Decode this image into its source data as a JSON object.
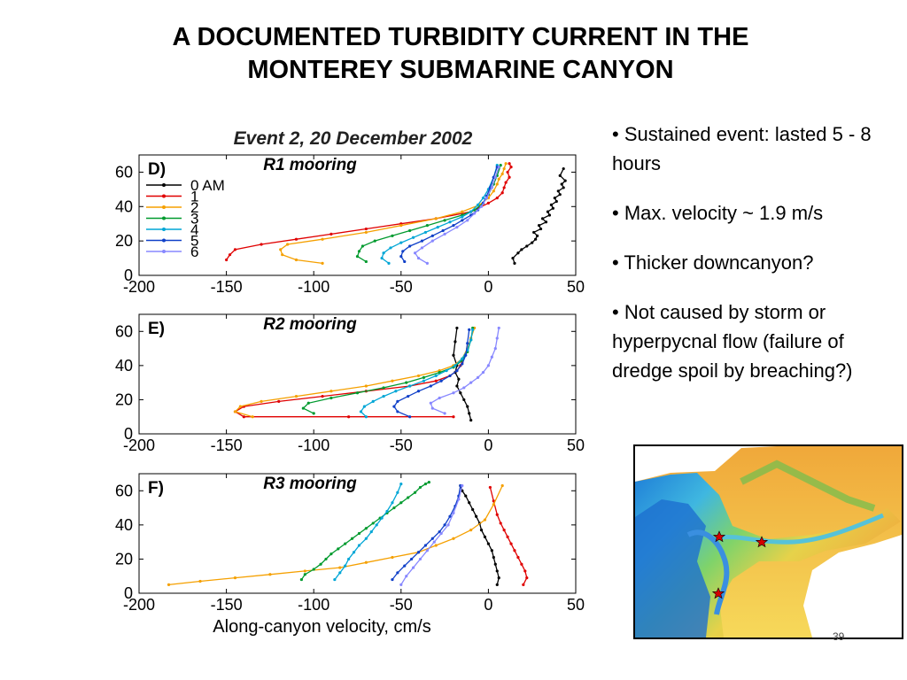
{
  "slide": {
    "title_line1": "A DOCUMENTED TURBIDITY CURRENT IN THE",
    "title_line2": "MONTEREY SUBMARINE CANYON",
    "bullets": [
      "• Sustained event: lasted 5 - 8 hours",
      "• Max. velocity ~ 1.9 m/s",
      "• Thicker downcanyon?",
      "• Not caused by storm or hyperpycnal flow (failure of dredge spoil by breaching?)"
    ],
    "page_number": "39"
  },
  "map": {
    "description_icon": "bathymetry-map-icon",
    "marker_icon": "star-icon",
    "marker_color": "#d40000"
  },
  "chart_data": [
    {
      "type": "line",
      "figure_title": "Event 2, 20 December 2002",
      "panel_label": "D)",
      "title": "R1 mooring",
      "xlabel": "",
      "ylabel": "",
      "xlim": [
        -200,
        50
      ],
      "ylim": [
        0,
        70
      ],
      "xticks": [
        -200,
        -150,
        -100,
        -50,
        0,
        50
      ],
      "yticks": [
        0,
        20,
        40,
        60
      ],
      "legend_position": "left",
      "series": [
        {
          "name": "0 AM",
          "color": "#000000",
          "x": [
            15,
            14,
            17,
            19,
            22,
            25,
            27,
            28,
            26,
            30,
            29,
            33,
            31,
            35,
            34,
            37,
            36,
            39,
            38,
            41,
            40,
            43,
            42,
            44,
            41,
            43
          ],
          "y": [
            7,
            10,
            13,
            15,
            17,
            19,
            21,
            23,
            25,
            27,
            29,
            31,
            33,
            35,
            37,
            39,
            41,
            43,
            45,
            47,
            49,
            51,
            53,
            55,
            58,
            62
          ]
        },
        {
          "name": "1",
          "color": "#e00000",
          "x": [
            -150,
            -148,
            -145,
            -130,
            -110,
            -90,
            -70,
            -50,
            -30,
            -10,
            0,
            5,
            8,
            9,
            10,
            12,
            11,
            13,
            12
          ],
          "y": [
            9,
            12,
            15,
            18,
            21,
            24,
            27,
            30,
            33,
            37,
            42,
            45,
            48,
            51,
            54,
            57,
            60,
            63,
            65
          ]
        },
        {
          "name": "2",
          "color": "#f5a000",
          "x": [
            -95,
            -110,
            -118,
            -119,
            -115,
            -95,
            -70,
            -50,
            -30,
            -15,
            -5,
            0,
            3,
            5,
            6,
            8,
            9,
            10
          ],
          "y": [
            7,
            9,
            12,
            15,
            18,
            21,
            25,
            29,
            33,
            37,
            41,
            45,
            49,
            53,
            56,
            59,
            62,
            65
          ]
        },
        {
          "name": "3",
          "color": "#009a2e",
          "x": [
            -70,
            -75,
            -74,
            -72,
            -65,
            -55,
            -45,
            -35,
            -25,
            -15,
            -8,
            -3,
            0,
            3,
            5,
            7
          ],
          "y": [
            8,
            11,
            14,
            17,
            20,
            23,
            26,
            29,
            32,
            35,
            38,
            42,
            47,
            53,
            58,
            64
          ]
        },
        {
          "name": "4",
          "color": "#00a6d6",
          "x": [
            -57,
            -61,
            -60,
            -56,
            -50,
            -43,
            -36,
            -29,
            -22,
            -15,
            -10,
            -6,
            -3,
            0,
            3,
            5
          ],
          "y": [
            7,
            10,
            13,
            16,
            19,
            22,
            25,
            28,
            31,
            34,
            37,
            41,
            45,
            50,
            57,
            64
          ]
        },
        {
          "name": "5",
          "color": "#1040c8",
          "x": [
            -48,
            -50,
            -49,
            -45,
            -38,
            -32,
            -26,
            -20,
            -15,
            -10,
            -6,
            -3,
            -1,
            1,
            3,
            5
          ],
          "y": [
            8,
            11,
            14,
            17,
            20,
            23,
            26,
            29,
            32,
            35,
            38,
            42,
            46,
            51,
            57,
            63
          ]
        },
        {
          "name": "6",
          "color": "#8888ff",
          "x": [
            -35,
            -40,
            -42,
            -38,
            -32,
            -25,
            -18,
            -12,
            -8,
            -4,
            -1,
            2,
            4,
            6
          ],
          "y": [
            7,
            10,
            13,
            16,
            20,
            24,
            28,
            32,
            36,
            40,
            45,
            51,
            57,
            63
          ]
        }
      ]
    },
    {
      "type": "line",
      "panel_label": "E)",
      "title": "R2 mooring",
      "xlabel": "",
      "ylabel": "",
      "xlim": [
        -200,
        50
      ],
      "ylim": [
        0,
        70
      ],
      "xticks": [
        -200,
        -150,
        -100,
        -50,
        0,
        50
      ],
      "yticks": [
        0,
        20,
        40,
        60
      ],
      "series": [
        {
          "name": "0 AM",
          "color": "#000000",
          "x": [
            -10,
            -11,
            -12,
            -14,
            -16,
            -18,
            -17,
            -19,
            -18,
            -20,
            -19,
            -18
          ],
          "y": [
            8,
            12,
            16,
            20,
            24,
            28,
            32,
            36,
            40,
            46,
            54,
            62
          ]
        },
        {
          "name": "1",
          "color": "#e00000",
          "x": [
            -20,
            -80,
            -140,
            -145,
            -140,
            -120,
            -95,
            -70,
            -45,
            -30,
            -22,
            -18,
            -16,
            -15
          ],
          "y": [
            10,
            10,
            10,
            13,
            16,
            19,
            22,
            25,
            28,
            31,
            34,
            37,
            40,
            42
          ]
        },
        {
          "name": "2",
          "color": "#f5a000",
          "x": [
            -135,
            -145,
            -142,
            -130,
            -110,
            -90,
            -70,
            -55,
            -40,
            -28,
            -20,
            -15,
            -12,
            -10,
            -8
          ],
          "y": [
            10,
            13,
            16,
            19,
            22,
            25,
            28,
            31,
            34,
            37,
            40,
            44,
            50,
            56,
            62
          ]
        },
        {
          "name": "3",
          "color": "#009a2e",
          "x": [
            -100,
            -106,
            -103,
            -90,
            -75,
            -60,
            -47,
            -37,
            -28,
            -20,
            -15,
            -12,
            -10,
            -9
          ],
          "y": [
            12,
            15,
            18,
            21,
            24,
            27,
            30,
            33,
            36,
            39,
            43,
            48,
            55,
            62
          ]
        },
        {
          "name": "4",
          "color": "#00a6d6",
          "x": [
            -70,
            -73,
            -71,
            -66,
            -60,
            -53,
            -45,
            -37,
            -30,
            -24,
            -19,
            -15,
            -12,
            -10,
            -9
          ],
          "y": [
            10,
            13,
            16,
            19,
            22,
            25,
            28,
            31,
            34,
            37,
            40,
            44,
            49,
            55,
            61
          ]
        },
        {
          "name": "5",
          "color": "#1040c8",
          "x": [
            -45,
            -52,
            -54,
            -52,
            -46,
            -40,
            -33,
            -27,
            -22,
            -18,
            -15,
            -13,
            -12,
            -11
          ],
          "y": [
            10,
            13,
            16,
            19,
            22,
            25,
            28,
            31,
            34,
            37,
            41,
            46,
            53,
            61
          ]
        },
        {
          "name": "6",
          "color": "#8888ff",
          "x": [
            -25,
            -32,
            -33,
            -28,
            -20,
            -14,
            -10,
            -6,
            -3,
            0,
            2,
            4,
            5,
            6
          ],
          "y": [
            12,
            15,
            18,
            21,
            24,
            27,
            30,
            33,
            36,
            40,
            45,
            50,
            56,
            62
          ]
        }
      ]
    },
    {
      "type": "line",
      "panel_label": "F)",
      "title": "R3 mooring",
      "xlabel": "Along-canyon velocity, cm/s",
      "ylabel": "",
      "xlim": [
        -200,
        50
      ],
      "ylim": [
        0,
        70
      ],
      "xticks": [
        -200,
        -150,
        -100,
        -50,
        0,
        50
      ],
      "yticks": [
        0,
        20,
        40,
        60
      ],
      "series": [
        {
          "name": "0 AM",
          "color": "#000000",
          "x": [
            5,
            6,
            5,
            4,
            3,
            2,
            0,
            -2,
            -4,
            -5,
            -7,
            -9,
            -11,
            -13,
            -15,
            -16
          ],
          "y": [
            5,
            9,
            13,
            17,
            21,
            25,
            29,
            33,
            37,
            41,
            45,
            49,
            53,
            57,
            60,
            63
          ]
        },
        {
          "name": "1",
          "color": "#e00000",
          "x": [
            20,
            22,
            21,
            19,
            17,
            15,
            13,
            11,
            9,
            7,
            5,
            3,
            1
          ],
          "y": [
            5,
            9,
            13,
            17,
            21,
            25,
            29,
            33,
            37,
            41,
            46,
            54,
            62
          ]
        },
        {
          "name": "2",
          "color": "#f5a000",
          "x": [
            -183,
            -165,
            -145,
            -125,
            -105,
            -85,
            -70,
            -55,
            -40,
            -30,
            -20,
            -10,
            -2,
            3,
            8
          ],
          "y": [
            5,
            7,
            9,
            11,
            13,
            15,
            18,
            21,
            24,
            28,
            32,
            37,
            43,
            52,
            63
          ]
        },
        {
          "name": "3",
          "color": "#009a2e",
          "x": [
            -107,
            -105,
            -100,
            -96,
            -93,
            -90,
            -86,
            -82,
            -78,
            -74,
            -70,
            -66,
            -62,
            -58,
            -54,
            -50,
            -46,
            -42,
            -39,
            -36,
            -34
          ],
          "y": [
            8,
            11,
            14,
            17,
            20,
            23,
            26,
            29,
            32,
            35,
            38,
            41,
            44,
            47,
            50,
            53,
            56,
            59,
            62,
            64,
            65
          ]
        },
        {
          "name": "4",
          "color": "#00a6d6",
          "x": [
            -88,
            -85,
            -82,
            -80,
            -77,
            -74,
            -70,
            -67,
            -64,
            -61,
            -58,
            -55,
            -52,
            -50
          ],
          "y": [
            8,
            12,
            16,
            20,
            24,
            28,
            32,
            36,
            40,
            44,
            48,
            53,
            59,
            64
          ]
        },
        {
          "name": "5",
          "color": "#1040c8",
          "x": [
            -55,
            -52,
            -48,
            -44,
            -40,
            -36,
            -32,
            -28,
            -25,
            -22,
            -19,
            -17,
            -16
          ],
          "y": [
            8,
            12,
            16,
            20,
            24,
            28,
            32,
            36,
            40,
            45,
            51,
            57,
            63
          ]
        },
        {
          "name": "6",
          "color": "#8888ff",
          "x": [
            -50,
            -47,
            -43,
            -39,
            -35,
            -31,
            -27,
            -23,
            -20,
            -17,
            -15
          ],
          "y": [
            5,
            10,
            15,
            20,
            25,
            30,
            35,
            40,
            47,
            55,
            63
          ]
        }
      ]
    }
  ]
}
